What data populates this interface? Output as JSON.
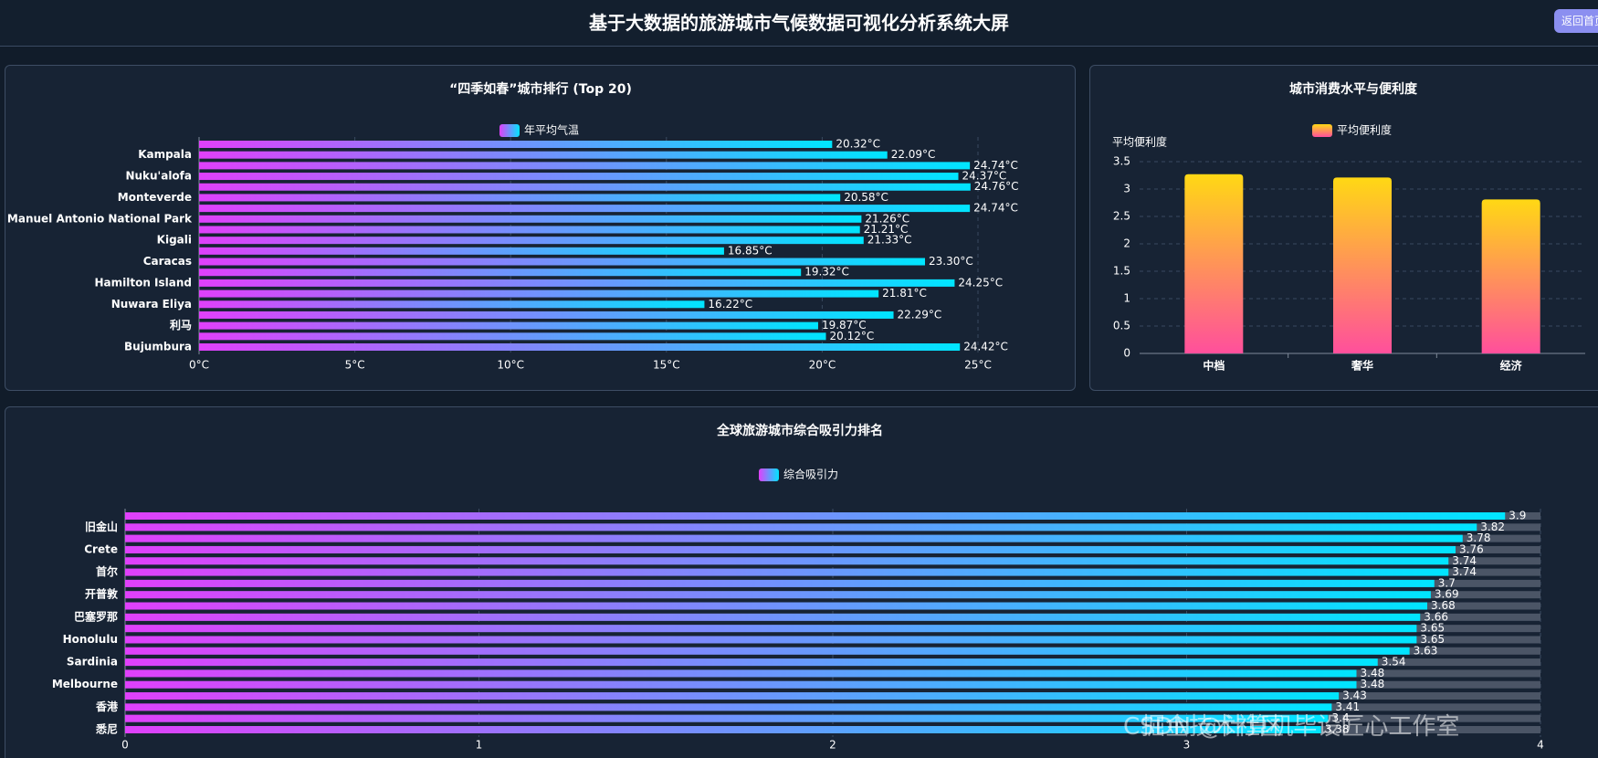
{
  "header": {
    "title": "基于大数据的旅游城市气候数据可视化分析系统大屏",
    "button": "返回首页"
  },
  "watermark": [
    "掘金技术社区",
    "CSDN @计算机毕设匠心工作室"
  ],
  "chart_data": [
    {
      "type": "barh",
      "title": "“四季如春”城市排行 (Top 20)",
      "categories": [
        null,
        "Kampala",
        null,
        "Nuku'alofa",
        null,
        "Monteverde",
        null,
        "Manuel Antonio National Park",
        null,
        "Kigali",
        null,
        "Caracas",
        null,
        "Hamilton Island",
        null,
        "Nuwara Eliya",
        null,
        "利马",
        null,
        "Bujumbura"
      ],
      "series": [
        {
          "name": "年平均气温",
          "color": [
            "#e040fb",
            "#00e5ff"
          ],
          "values": [
            20.32,
            22.09,
            24.74,
            24.37,
            24.76,
            20.58,
            24.74,
            21.26,
            21.21,
            21.33,
            16.85,
            23.3,
            19.32,
            24.25,
            21.81,
            16.22,
            22.29,
            19.87,
            20.12,
            24.42
          ],
          "value_labels": [
            "20.32°C",
            "22.09°C",
            "24.74°C",
            "24.37°C",
            "24.76°C",
            "20.58°C",
            "24.74°C",
            "21.26°C",
            "21.21°C",
            "21.33°C",
            "16.85°C",
            "23.30°C",
            "19.32°C",
            "24.25°C",
            "21.81°C",
            "16.22°C",
            "22.29°C",
            "19.87°C",
            "20.12°C",
            "24.42°C"
          ]
        }
      ],
      "xlim": [
        0,
        25
      ],
      "xticks": [
        {
          "value": 0,
          "label": "0°C"
        },
        {
          "value": 5,
          "label": "5°C"
        },
        {
          "value": 10,
          "label": "10°C"
        },
        {
          "value": 15,
          "label": "15°C"
        },
        {
          "value": 20,
          "label": "20°C"
        },
        {
          "value": 25,
          "label": "25°C"
        }
      ],
      "grid": true
    },
    {
      "type": "bar",
      "title": "城市消费水平与便利度",
      "y_label": "平均便利度",
      "categories": [
        "中档",
        "奢华",
        "经济"
      ],
      "series": [
        {
          "name": "平均便利度",
          "color": [
            "#ffd814",
            "#ff4f9c"
          ],
          "values": [
            3.27,
            3.21,
            2.81
          ]
        }
      ],
      "ylim": [
        0,
        3.5
      ],
      "yticks": [
        0,
        0.5,
        1,
        1.5,
        2,
        2.5,
        3,
        3.5
      ],
      "grid": true
    },
    {
      "type": "barh",
      "title": "全球旅游城市综合吸引力排名",
      "categories": [
        null,
        "旧金山",
        null,
        "Crete",
        null,
        "首尔",
        null,
        "开普敦",
        null,
        "巴塞罗那",
        null,
        "Honolulu",
        null,
        "Sardinia",
        null,
        "Melbourne",
        null,
        "香港",
        null,
        "悉尼"
      ],
      "series": [
        {
          "name": "综合吸引力",
          "color": [
            "#e040fb",
            "#00e5ff"
          ],
          "values": [
            3.9,
            3.82,
            3.78,
            3.76,
            3.74,
            3.74,
            3.7,
            3.69,
            3.68,
            3.66,
            3.65,
            3.65,
            3.63,
            3.54,
            3.48,
            3.48,
            3.43,
            3.41,
            3.4,
            3.38
          ]
        }
      ],
      "xlim": [
        0,
        4
      ],
      "xticks": [
        0,
        1,
        2,
        3,
        4
      ],
      "grid": true,
      "bar_background": "#4b5566"
    }
  ]
}
